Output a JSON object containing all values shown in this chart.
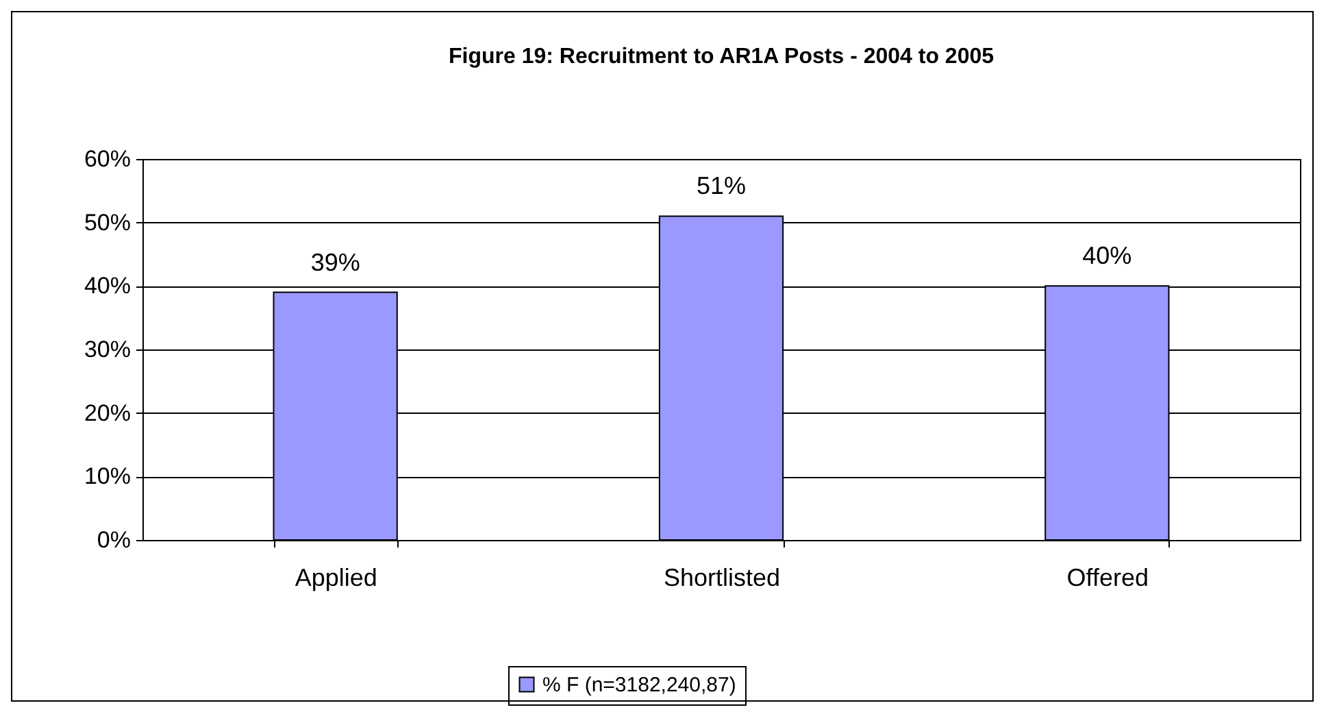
{
  "chart_data": {
    "type": "bar",
    "title": "Figure 19: Recruitment to AR1A Posts - 2004 to 2005",
    "categories": [
      "Applied",
      "Shortlisted",
      "Offered"
    ],
    "series": [
      {
        "name": "% F (n=3182,240,87)",
        "color": "#9999ff",
        "values": [
          39,
          51,
          40
        ],
        "value_labels": [
          "39%",
          "51%",
          "40%"
        ]
      }
    ],
    "ylim": [
      0,
      60
    ],
    "yticks": [
      {
        "value": 0,
        "label": "0%"
      },
      {
        "value": 10,
        "label": "10%"
      },
      {
        "value": 20,
        "label": "20%"
      },
      {
        "value": 30,
        "label": "30%"
      },
      {
        "value": 40,
        "label": "40%"
      },
      {
        "value": 50,
        "label": "50%"
      },
      {
        "value": 60,
        "label": "60%"
      }
    ],
    "grid": "y",
    "legend": "bottom"
  }
}
